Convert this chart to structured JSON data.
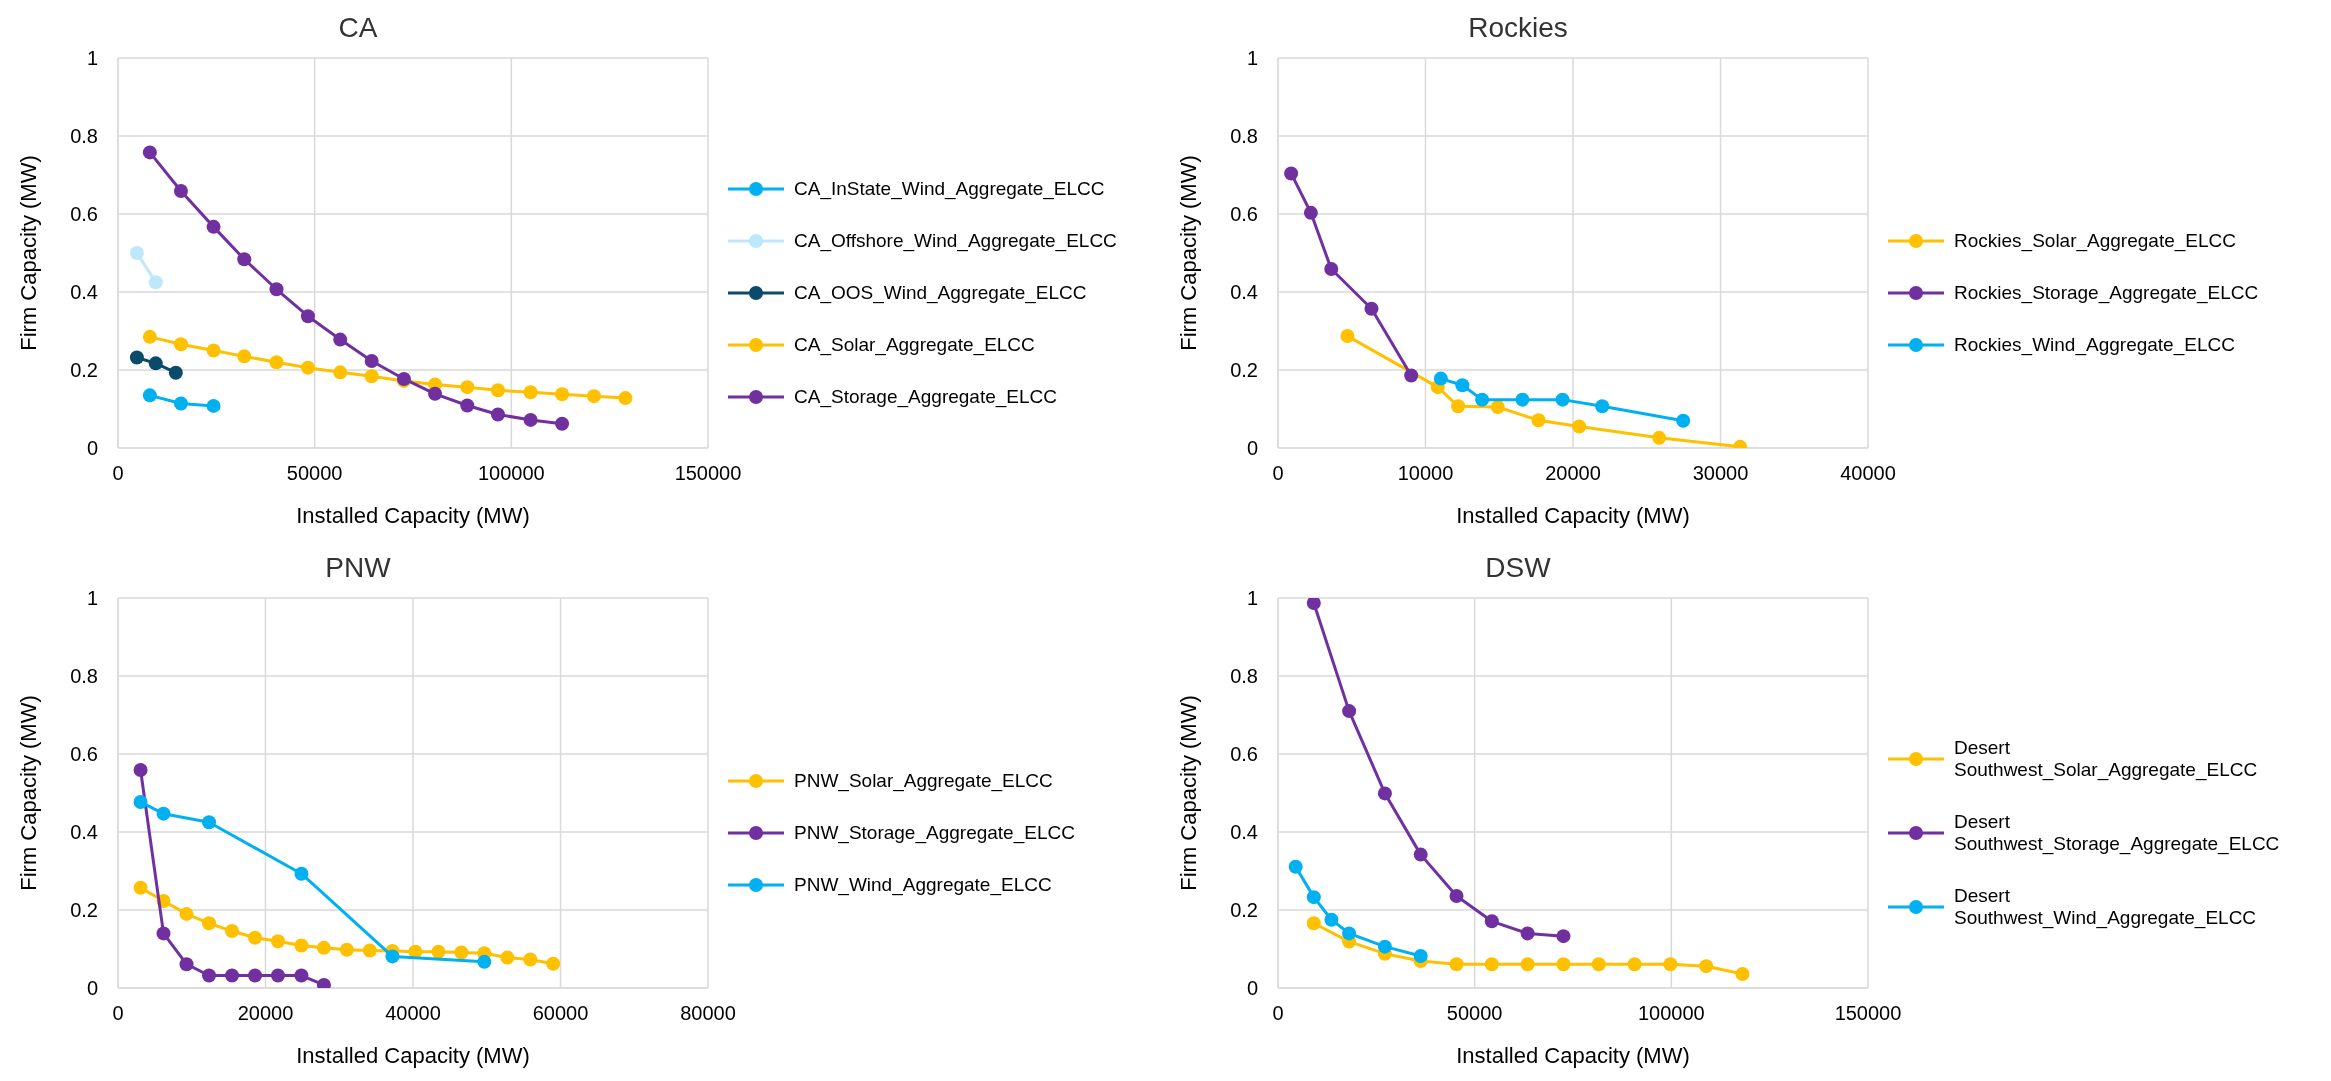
{
  "chart_data": [
    {
      "type": "line",
      "title": "CA",
      "xlabel": "Installed Capacity (MW)",
      "ylabel": "Firm Capacity (MW)",
      "xlim": [
        0,
        150000
      ],
      "xticks": [
        0,
        50000,
        100000,
        150000
      ],
      "ylim": [
        0,
        1
      ],
      "yticks": [
        0,
        0.2,
        0.4,
        0.6,
        0.8,
        1
      ],
      "grid": true,
      "legend": "right",
      "marker": "circle",
      "series": [
        {
          "name": "CA_InState_Wind_Aggregate_ELCC",
          "color": "#00b0f0",
          "x": [
            8100,
            16000,
            24300
          ],
          "values": [
            0.135,
            0.114,
            0.108
          ]
        },
        {
          "name": "CA_Offshore_Wind_Aggregate_ELCC",
          "color": "#bde8fa",
          "x": [
            4800,
            9600
          ],
          "values": [
            0.5,
            0.425
          ]
        },
        {
          "name": "CA_OOS_Wind_Aggregate_ELCC",
          "color": "#0b4a6a",
          "x": [
            4800,
            9600,
            14700
          ],
          "values": [
            0.232,
            0.217,
            0.193
          ]
        },
        {
          "name": "CA_Solar_Aggregate_ELCC",
          "color": "#ffc000",
          "x": [
            8100,
            16000,
            24300,
            32100,
            40300,
            48300,
            56500,
            64500,
            72700,
            80600,
            88800,
            96600,
            104900,
            112900,
            121000,
            129000
          ],
          "values": [
            0.285,
            0.266,
            0.25,
            0.235,
            0.22,
            0.206,
            0.194,
            0.184,
            0.172,
            0.163,
            0.156,
            0.148,
            0.143,
            0.138,
            0.133,
            0.128
          ]
        },
        {
          "name": "CA_Storage_Aggregate_ELCC",
          "color": "#7030a0",
          "x": [
            8100,
            16000,
            24300,
            32100,
            40300,
            48300,
            56500,
            64500,
            72700,
            80600,
            88800,
            96600,
            104900,
            112900
          ],
          "values": [
            0.758,
            0.659,
            0.567,
            0.484,
            0.407,
            0.338,
            0.278,
            0.223,
            0.177,
            0.139,
            0.109,
            0.086,
            0.072,
            0.062
          ]
        }
      ]
    },
    {
      "type": "line",
      "title": "Rockies",
      "xlabel": "Installed Capacity (MW)",
      "ylabel": "Firm Capacity (MW)",
      "xlim": [
        0,
        40000
      ],
      "xticks": [
        0,
        10000,
        20000,
        30000,
        40000
      ],
      "ylim": [
        0,
        1
      ],
      "yticks": [
        0,
        0.2,
        0.4,
        0.6,
        0.8,
        1
      ],
      "grid": true,
      "legend": "right",
      "marker": "circle",
      "series": [
        {
          "name": "Rockies_Solar_Aggregate_ELCC",
          "color": "#ffc000",
          "x": [
            4710,
            10830,
            12210,
            14900,
            17660,
            20420,
            25840,
            31330
          ],
          "values": [
            0.287,
            0.156,
            0.107,
            0.105,
            0.071,
            0.055,
            0.026,
            0.003
          ]
        },
        {
          "name": "Rockies_Storage_Aggregate_ELCC",
          "color": "#7030a0",
          "x": [
            890,
            2230,
            3610,
            6340,
            9030
          ],
          "values": [
            0.704,
            0.603,
            0.459,
            0.357,
            0.186
          ]
        },
        {
          "name": "Rockies_Wind_Aggregate_ELCC",
          "color": "#00b0f0",
          "x": [
            11040,
            12500,
            13840,
            16570,
            19290,
            21980,
            27470
          ],
          "values": [
            0.178,
            0.161,
            0.124,
            0.124,
            0.124,
            0.107,
            0.07
          ]
        }
      ]
    },
    {
      "type": "line",
      "title": "PNW",
      "xlabel": "Installed Capacity (MW)",
      "ylabel": "Firm Capacity (MW)",
      "xlim": [
        0,
        80000
      ],
      "xticks": [
        0,
        20000,
        40000,
        60000,
        80000
      ],
      "ylim": [
        0,
        1
      ],
      "yticks": [
        0,
        0.2,
        0.4,
        0.6,
        0.8,
        1
      ],
      "grid": true,
      "legend": "right",
      "marker": "circle",
      "series": [
        {
          "name": "PNW_Solar_Aggregate_ELCC",
          "color": "#ffc000",
          "x": [
            3060,
            6170,
            9290,
            12340,
            15460,
            18580,
            21690,
            24870,
            27920,
            31030,
            34140,
            37210,
            40320,
            43450,
            46560,
            49670,
            52790,
            55900,
            59010
          ],
          "values": [
            0.257,
            0.223,
            0.19,
            0.166,
            0.146,
            0.129,
            0.12,
            0.109,
            0.103,
            0.098,
            0.096,
            0.095,
            0.093,
            0.093,
            0.091,
            0.089,
            0.078,
            0.073,
            0.062
          ]
        },
        {
          "name": "PNW_Storage_Aggregate_ELCC",
          "color": "#7030a0",
          "x": [
            3060,
            6170,
            9290,
            12340,
            15460,
            18580,
            21690,
            24870,
            27920
          ],
          "values": [
            0.559,
            0.14,
            0.061,
            0.032,
            0.032,
            0.032,
            0.032,
            0.032,
            0.008
          ]
        },
        {
          "name": "PNW_Wind_Aggregate_ELCC",
          "color": "#00b0f0",
          "x": [
            3060,
            6170,
            12340,
            24870,
            37210,
            49670
          ],
          "values": [
            0.477,
            0.447,
            0.425,
            0.293,
            0.081,
            0.067
          ]
        }
      ]
    },
    {
      "type": "line",
      "title": "DSW",
      "xlabel": "Installed Capacity (MW)",
      "ylabel": "Firm Capacity (MW)",
      "xlim": [
        0,
        150000
      ],
      "xticks": [
        0,
        50000,
        100000,
        150000
      ],
      "ylim": [
        0,
        1
      ],
      "yticks": [
        0,
        0.2,
        0.4,
        0.6,
        0.8,
        1
      ],
      "grid": true,
      "legend": "right",
      "marker": "circle",
      "series": [
        {
          "name": "Desert Southwest_Solar_Aggregate_ELCC",
          "color": "#ffc000",
          "x": [
            9100,
            18080,
            27180,
            36280,
            45390,
            54360,
            63470,
            72570,
            81550,
            90660,
            99760,
            108870,
            118100
          ],
          "values": [
            0.166,
            0.119,
            0.088,
            0.069,
            0.061,
            0.061,
            0.061,
            0.061,
            0.061,
            0.061,
            0.061,
            0.056,
            0.036
          ]
        },
        {
          "name": "Desert Southwest_Storage_Aggregate_ELCC",
          "color": "#7030a0",
          "x": [
            9100,
            18080,
            27180,
            36280,
            45390,
            54360,
            63470,
            72570
          ],
          "values": [
            0.987,
            0.71,
            0.499,
            0.342,
            0.236,
            0.171,
            0.14,
            0.133
          ]
        },
        {
          "name": "Desert Southwest_Wind_Aggregate_ELCC",
          "color": "#00b0f0",
          "x": [
            4490,
            9100,
            13590,
            18080,
            27180,
            36280
          ],
          "values": [
            0.311,
            0.233,
            0.175,
            0.14,
            0.106,
            0.082
          ]
        }
      ]
    }
  ]
}
